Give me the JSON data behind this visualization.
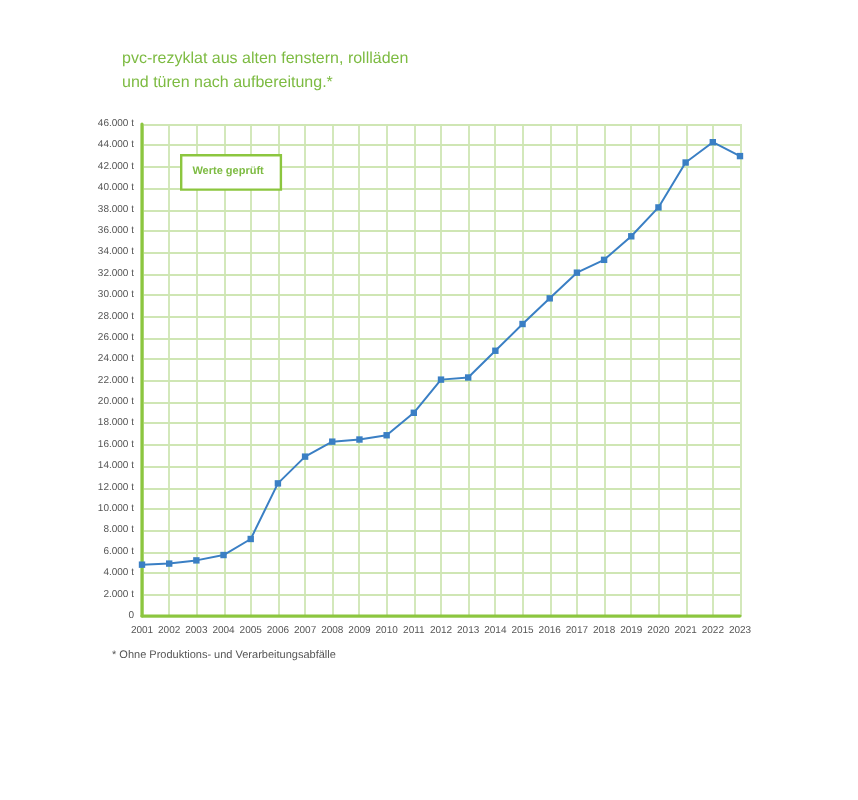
{
  "chart_data": {
    "type": "line",
    "title": "pvc-rezyklat aus alten fenstern, rollläden und türen nach aufbereitung.*",
    "categories": [
      "2001",
      "2002",
      "2003",
      "2004",
      "2005",
      "2006",
      "2007",
      "2008",
      "2009",
      "2010",
      "2011",
      "2012",
      "2013",
      "2014",
      "2015",
      "2016",
      "2017",
      "2018",
      "2019",
      "2020",
      "2021",
      "2022",
      "2023"
    ],
    "values": [
      4800,
      4900,
      5200,
      5700,
      7200,
      12400,
      14900,
      16300,
      16500,
      16900,
      19000,
      22100,
      22300,
      24800,
      27300,
      29700,
      32100,
      33300,
      35500,
      38200,
      42400,
      44300,
      43000
    ],
    "color": "#3a7fc4",
    "marker": "square",
    "line_style": "solid",
    "grid": true,
    "ylim": [
      0,
      46000
    ],
    "yticks": [
      0,
      {
        "value": 2000,
        "label": "2.000 t"
      },
      {
        "value": 4000,
        "label": "4.000 t"
      },
      {
        "value": 6000,
        "label": "6.000 t"
      },
      {
        "value": 8000,
        "label": "8.000 t"
      },
      {
        "value": 10000,
        "label": "10.000 t"
      },
      {
        "value": 12000,
        "label": "12.000 t"
      },
      {
        "value": 14000,
        "label": "14.000 t"
      },
      {
        "value": 16000,
        "label": "16.000 t"
      },
      {
        "value": 18000,
        "label": "18.000 t"
      },
      {
        "value": 20000,
        "label": "20.000 t"
      },
      {
        "value": 22000,
        "label": "22.000 t"
      },
      {
        "value": 24000,
        "label": "24.000 t"
      },
      {
        "value": 26000,
        "label": "26.000 t"
      },
      {
        "value": 28000,
        "label": "28.000 t"
      },
      {
        "value": 30000,
        "label": "30.000 t"
      },
      {
        "value": 32000,
        "label": "32.000 t"
      },
      {
        "value": 34000,
        "label": "34.000 t"
      },
      {
        "value": 36000,
        "label": "36.000 t"
      },
      {
        "value": 38000,
        "label": "38.000 t"
      },
      {
        "value": 40000,
        "label": "40.000 t"
      },
      {
        "value": 42000,
        "label": "42.000 t"
      },
      {
        "value": 44000,
        "label": "44.000 t"
      },
      {
        "value": 46000,
        "label": "46.000 t"
      }
    ],
    "annotations": [
      "Werte geprüft",
      "* Ohne Produktions- und Verarbeitungsabfälle"
    ]
  }
}
